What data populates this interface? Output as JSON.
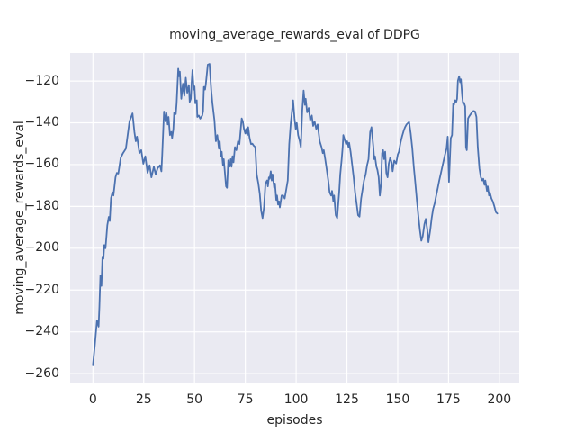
{
  "colors": {
    "figure_bg": "#ffffff",
    "plot_bg": "#eaeaf2",
    "grid": "#ffffff",
    "line": "#4c72b0",
    "text": "#262626"
  },
  "chart_data": {
    "type": "line",
    "title": "moving_average_rewards_eval of DDPG",
    "xlabel": "episodes",
    "ylabel": "moving_average_rewards_eval",
    "grid": true,
    "legend": null,
    "xlim": [
      -11.2,
      209.8
    ],
    "ylim": [
      -264.7,
      -106.6
    ],
    "x_ticks": [
      0,
      25,
      50,
      75,
      100,
      125,
      150,
      175,
      200
    ],
    "y_ticks": [
      -260,
      -240,
      -220,
      -200,
      -180,
      -160,
      -140,
      -120
    ],
    "series": [
      {
        "name": "moving_average_rewards_eval",
        "points": [
          [
            0,
            -256
          ],
          [
            1,
            -246
          ],
          [
            2,
            -234.5
          ],
          [
            2.8,
            -237.5
          ],
          [
            3.2,
            -228
          ],
          [
            3.7,
            -213
          ],
          [
            4.2,
            -218
          ],
          [
            4.7,
            -204
          ],
          [
            5.2,
            -205
          ],
          [
            5.6,
            -198.5
          ],
          [
            6.2,
            -200
          ],
          [
            7.1,
            -189
          ],
          [
            7.8,
            -185
          ],
          [
            8.3,
            -187
          ],
          [
            8.9,
            -176
          ],
          [
            9.6,
            -173.3
          ],
          [
            10.1,
            -174.8
          ],
          [
            11.1,
            -166
          ],
          [
            11.8,
            -164
          ],
          [
            12.5,
            -164.3
          ],
          [
            13.7,
            -156.7
          ],
          [
            14.8,
            -154.5
          ],
          [
            16.2,
            -152.4
          ],
          [
            18,
            -139.4
          ],
          [
            19.5,
            -135.5
          ],
          [
            20.4,
            -144.4
          ],
          [
            21.1,
            -148.8
          ],
          [
            21.7,
            -146.6
          ],
          [
            22.9,
            -154.5
          ],
          [
            23.8,
            -153.1
          ],
          [
            24.8,
            -159.6
          ],
          [
            25.8,
            -156
          ],
          [
            26.9,
            -163.9
          ],
          [
            27.9,
            -160.3
          ],
          [
            28.8,
            -166.1
          ],
          [
            30,
            -161
          ],
          [
            30.9,
            -164.7
          ],
          [
            31.8,
            -161.8
          ],
          [
            33,
            -160.3
          ],
          [
            33.7,
            -163.2
          ],
          [
            34.1,
            -155.2
          ],
          [
            35,
            -134.6
          ],
          [
            35.8,
            -139.4
          ],
          [
            36.2,
            -135.3
          ],
          [
            36.8,
            -140.8
          ],
          [
            37.2,
            -137.2
          ],
          [
            37.9,
            -145.9
          ],
          [
            38.6,
            -144.4
          ],
          [
            39,
            -147.3
          ],
          [
            39.6,
            -142.9
          ],
          [
            40,
            -135
          ],
          [
            40.8,
            -135.8
          ],
          [
            41.2,
            -130.7
          ],
          [
            42,
            -114.1
          ],
          [
            42.4,
            -117.7
          ],
          [
            42.8,
            -115.5
          ],
          [
            43.5,
            -128.5
          ],
          [
            44.3,
            -121.3
          ],
          [
            45,
            -127
          ],
          [
            45.7,
            -118.4
          ],
          [
            46.4,
            -125.6
          ],
          [
            47.2,
            -122
          ],
          [
            47.6,
            -130
          ],
          [
            48.2,
            -128.5
          ],
          [
            48.6,
            -120.6
          ],
          [
            49,
            -114.8
          ],
          [
            49.6,
            -124.1
          ],
          [
            50,
            -122.6
          ],
          [
            50.4,
            -130.7
          ],
          [
            51.1,
            -129.2
          ],
          [
            51.4,
            -137.2
          ],
          [
            52.1,
            -136.5
          ],
          [
            52.8,
            -138
          ],
          [
            53.8,
            -136.5
          ],
          [
            54.2,
            -134.3
          ],
          [
            54.6,
            -122.8
          ],
          [
            55.2,
            -124.1
          ],
          [
            55.6,
            -121.3
          ],
          [
            56.5,
            -112.2
          ],
          [
            57.4,
            -111.8
          ],
          [
            58.2,
            -124
          ],
          [
            58.8,
            -130.7
          ],
          [
            59.8,
            -138.7
          ],
          [
            60.5,
            -148.8
          ],
          [
            61.2,
            -145.9
          ],
          [
            62,
            -152.4
          ],
          [
            62.4,
            -148.8
          ],
          [
            63,
            -156
          ],
          [
            63.4,
            -153.8
          ],
          [
            64,
            -160.3
          ],
          [
            64.4,
            -157.4
          ],
          [
            65,
            -164.7
          ],
          [
            65.5,
            -170.4
          ],
          [
            66,
            -171.1
          ],
          [
            66.6,
            -158
          ],
          [
            67.3,
            -161
          ],
          [
            67.8,
            -157.4
          ],
          [
            68.2,
            -161
          ],
          [
            68.7,
            -156
          ],
          [
            69.2,
            -158.9
          ],
          [
            69.9,
            -151.6
          ],
          [
            70.6,
            -153.1
          ],
          [
            71.4,
            -148.8
          ],
          [
            72.1,
            -150.2
          ],
          [
            73.2,
            -137.9
          ],
          [
            73.8,
            -139.4
          ],
          [
            74.3,
            -142.9
          ],
          [
            75,
            -145.1
          ],
          [
            75.4,
            -142.9
          ],
          [
            76,
            -145.9
          ],
          [
            76.4,
            -142.1
          ],
          [
            77.1,
            -147.3
          ],
          [
            77.8,
            -150.2
          ],
          [
            78.5,
            -150
          ],
          [
            79.2,
            -151
          ],
          [
            79.9,
            -151.6
          ],
          [
            80.6,
            -164.7
          ],
          [
            81.4,
            -169
          ],
          [
            82.1,
            -174
          ],
          [
            82.8,
            -182
          ],
          [
            83.5,
            -185.6
          ],
          [
            84.2,
            -180.5
          ],
          [
            84.9,
            -169
          ],
          [
            85.7,
            -167.6
          ],
          [
            86.1,
            -170.4
          ],
          [
            86.6,
            -166.1
          ],
          [
            87,
            -166.8
          ],
          [
            87.5,
            -163.2
          ],
          [
            88,
            -167.6
          ],
          [
            88.4,
            -164.7
          ],
          [
            89.2,
            -171.1
          ],
          [
            89.6,
            -169
          ],
          [
            90.2,
            -176.9
          ],
          [
            90.6,
            -174.8
          ],
          [
            91.1,
            -179.1
          ],
          [
            91.6,
            -177.6
          ],
          [
            92,
            -180.5
          ],
          [
            92.9,
            -174.8
          ],
          [
            93.6,
            -174.8
          ],
          [
            94.4,
            -176.2
          ],
          [
            95.9,
            -167.6
          ],
          [
            96.6,
            -150.2
          ],
          [
            97.3,
            -140.8
          ],
          [
            98.5,
            -129.2
          ],
          [
            99.2,
            -137.9
          ],
          [
            99.8,
            -142.9
          ],
          [
            100.3,
            -140.1
          ],
          [
            101,
            -145.9
          ],
          [
            101.8,
            -148.8
          ],
          [
            102.3,
            -151.6
          ],
          [
            103,
            -134
          ],
          [
            103.7,
            -124.5
          ],
          [
            104.3,
            -131.4
          ],
          [
            104.7,
            -128.5
          ],
          [
            105.4,
            -135
          ],
          [
            106.2,
            -132.9
          ],
          [
            106.9,
            -138.7
          ],
          [
            107.7,
            -136.5
          ],
          [
            108.4,
            -141.5
          ],
          [
            109.1,
            -139.4
          ],
          [
            109.9,
            -142.9
          ],
          [
            110.6,
            -140.8
          ],
          [
            111.6,
            -148.8
          ],
          [
            112.5,
            -151.6
          ],
          [
            113.1,
            -154.5
          ],
          [
            113.6,
            -153.1
          ],
          [
            114.3,
            -157.4
          ],
          [
            115,
            -161.8
          ],
          [
            115.8,
            -167.6
          ],
          [
            116.5,
            -173.3
          ],
          [
            117.2,
            -174.8
          ],
          [
            117.7,
            -172.6
          ],
          [
            118.3,
            -177.6
          ],
          [
            118.7,
            -174.8
          ],
          [
            119.5,
            -184.2
          ],
          [
            120.2,
            -185.6
          ],
          [
            120.6,
            -180.5
          ],
          [
            121.2,
            -173.3
          ],
          [
            121.7,
            -164.7
          ],
          [
            122.4,
            -157.4
          ],
          [
            122.9,
            -151.6
          ],
          [
            123.2,
            -145.9
          ],
          [
            123.9,
            -148.1
          ],
          [
            124.6,
            -150.2
          ],
          [
            125.1,
            -148.8
          ],
          [
            125.8,
            -151.6
          ],
          [
            126.1,
            -149.5
          ],
          [
            126.8,
            -153.8
          ],
          [
            127.6,
            -160.3
          ],
          [
            128.3,
            -166.1
          ],
          [
            129,
            -173.3
          ],
          [
            129.8,
            -179.1
          ],
          [
            130.5,
            -184.2
          ],
          [
            131.2,
            -184.9
          ],
          [
            132,
            -176.2
          ],
          [
            132.7,
            -171.9
          ],
          [
            133.4,
            -167.6
          ],
          [
            134.2,
            -164.7
          ],
          [
            134.9,
            -160.3
          ],
          [
            135.6,
            -157.4
          ],
          [
            136.4,
            -144.4
          ],
          [
            137.1,
            -142.1
          ],
          [
            138,
            -151.6
          ],
          [
            138.4,
            -157.4
          ],
          [
            138.8,
            -156
          ],
          [
            139.5,
            -161
          ],
          [
            140,
            -162.5
          ],
          [
            140.6,
            -166
          ],
          [
            141.2,
            -174.8
          ],
          [
            141.8,
            -169
          ],
          [
            142.3,
            -154.5
          ],
          [
            142.8,
            -153.1
          ],
          [
            143.3,
            -157.4
          ],
          [
            143.8,
            -153.8
          ],
          [
            144.4,
            -164
          ],
          [
            145,
            -166.1
          ],
          [
            145.6,
            -159.6
          ],
          [
            146.3,
            -156.7
          ],
          [
            147,
            -159
          ],
          [
            147.5,
            -163.2
          ],
          [
            148.3,
            -158.1
          ],
          [
            149.2,
            -159.5
          ],
          [
            150,
            -155.2
          ],
          [
            150.6,
            -153.8
          ],
          [
            151.4,
            -149.5
          ],
          [
            152.1,
            -146.6
          ],
          [
            153,
            -143.5
          ],
          [
            153.6,
            -142.1
          ],
          [
            154.3,
            -140.8
          ],
          [
            155.6,
            -139.6
          ],
          [
            156.4,
            -145.1
          ],
          [
            157.2,
            -152.4
          ],
          [
            157.9,
            -161
          ],
          [
            158.6,
            -168.3
          ],
          [
            159.4,
            -176.9
          ],
          [
            160.1,
            -184.2
          ],
          [
            160.9,
            -191.4
          ],
          [
            161.6,
            -196.4
          ],
          [
            162.3,
            -194.3
          ],
          [
            163.1,
            -188.5
          ],
          [
            163.8,
            -186
          ],
          [
            164.5,
            -190.7
          ],
          [
            165.1,
            -197.1
          ],
          [
            166,
            -191.4
          ],
          [
            166.7,
            -185.6
          ],
          [
            167.4,
            -181.2
          ],
          [
            168.2,
            -178.4
          ],
          [
            169,
            -174.4
          ],
          [
            169.7,
            -171.1
          ],
          [
            170.4,
            -167.8
          ],
          [
            171.1,
            -164.7
          ],
          [
            171.9,
            -161.2
          ],
          [
            172.6,
            -158.1
          ],
          [
            173.3,
            -155.1
          ],
          [
            174,
            -152.4
          ],
          [
            174.6,
            -146.6
          ],
          [
            175.2,
            -168.3
          ],
          [
            176.1,
            -147.3
          ],
          [
            176.7,
            -145.9
          ],
          [
            177.3,
            -130.7
          ],
          [
            177.7,
            -131.4
          ],
          [
            178.2,
            -129.2
          ],
          [
            178.8,
            -130
          ],
          [
            179.2,
            -128.5
          ],
          [
            179.6,
            -119.9
          ],
          [
            180.2,
            -117.7
          ],
          [
            180.7,
            -120.6
          ],
          [
            181.1,
            -119.2
          ],
          [
            181.7,
            -127
          ],
          [
            182.1,
            -130.7
          ],
          [
            182.6,
            -130.4
          ],
          [
            183.2,
            -132.2
          ],
          [
            183.6,
            -151.6
          ],
          [
            184,
            -153.1
          ],
          [
            184.6,
            -137.9
          ],
          [
            185.1,
            -137
          ],
          [
            185.8,
            -136
          ],
          [
            186.5,
            -135
          ],
          [
            187.3,
            -134.3
          ],
          [
            188,
            -134.5
          ],
          [
            188.7,
            -137.2
          ],
          [
            189.4,
            -151.6
          ],
          [
            190.2,
            -161.8
          ],
          [
            190.9,
            -166.1
          ],
          [
            191.6,
            -167.6
          ],
          [
            192.1,
            -166.8
          ],
          [
            192.7,
            -169.7
          ],
          [
            193.1,
            -167.6
          ],
          [
            193.9,
            -172.6
          ],
          [
            194.3,
            -170.4
          ],
          [
            194.9,
            -174.8
          ],
          [
            195.3,
            -173.3
          ],
          [
            196.1,
            -176.2
          ],
          [
            196.8,
            -177.6
          ],
          [
            197.5,
            -179.8
          ],
          [
            198.3,
            -182.7
          ],
          [
            199,
            -183.4
          ]
        ]
      }
    ]
  }
}
